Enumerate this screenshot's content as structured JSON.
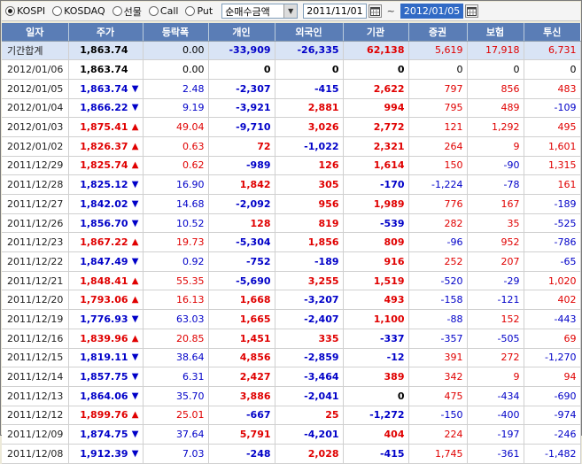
{
  "toolbar": {
    "markets": [
      {
        "label": "KOSPI",
        "selected": true
      },
      {
        "label": "KOSDAQ",
        "selected": false
      },
      {
        "label": "선물",
        "selected": false
      },
      {
        "label": "Call",
        "selected": false
      },
      {
        "label": "Put",
        "selected": false
      }
    ],
    "mode_select": "순매수금액",
    "start_date": "2011/11/01",
    "tilde": "~",
    "end_date": "2012/01/05"
  },
  "columns": [
    "일자",
    "주가",
    "등락폭",
    "개인",
    "외국인",
    "기관",
    "증권",
    "보험",
    "투신"
  ],
  "colors": {
    "up": "#e00000",
    "down": "#0000c8",
    "header_bg": "#5a7db6"
  },
  "rows": [
    {
      "date": "기간합계",
      "price": "1,863.74",
      "dir": "",
      "change": "0.00",
      "indiv": "-33,909",
      "foreign": "-26,335",
      "inst": "62,138",
      "sec": "5,619",
      "ins": "17,918",
      "trust": "6,731",
      "sum": true
    },
    {
      "date": "2012/01/06",
      "price": "1,863.74",
      "dir": "",
      "change": "0.00",
      "indiv": "0",
      "foreign": "0",
      "inst": "0",
      "sec": "0",
      "ins": "0",
      "trust": "0"
    },
    {
      "date": "2012/01/05",
      "price": "1,863.74",
      "dir": "down",
      "change": "2.48",
      "indiv": "-2,307",
      "foreign": "-415",
      "inst": "2,622",
      "sec": "797",
      "ins": "856",
      "trust": "483"
    },
    {
      "date": "2012/01/04",
      "price": "1,866.22",
      "dir": "down",
      "change": "9.19",
      "indiv": "-3,921",
      "foreign": "2,881",
      "inst": "994",
      "sec": "795",
      "ins": "489",
      "trust": "-109"
    },
    {
      "date": "2012/01/03",
      "price": "1,875.41",
      "dir": "up",
      "change": "49.04",
      "indiv": "-9,710",
      "foreign": "3,026",
      "inst": "2,772",
      "sec": "121",
      "ins": "1,292",
      "trust": "495"
    },
    {
      "date": "2012/01/02",
      "price": "1,826.37",
      "dir": "up",
      "change": "0.63",
      "indiv": "72",
      "foreign": "-1,022",
      "inst": "2,321",
      "sec": "264",
      "ins": "9",
      "trust": "1,601"
    },
    {
      "date": "2011/12/29",
      "price": "1,825.74",
      "dir": "up",
      "change": "0.62",
      "indiv": "-989",
      "foreign": "126",
      "inst": "1,614",
      "sec": "150",
      "ins": "-90",
      "trust": "1,315"
    },
    {
      "date": "2011/12/28",
      "price": "1,825.12",
      "dir": "down",
      "change": "16.90",
      "indiv": "1,842",
      "foreign": "305",
      "inst": "-170",
      "sec": "-1,224",
      "ins": "-78",
      "trust": "161"
    },
    {
      "date": "2011/12/27",
      "price": "1,842.02",
      "dir": "down",
      "change": "14.68",
      "indiv": "-2,092",
      "foreign": "956",
      "inst": "1,989",
      "sec": "776",
      "ins": "167",
      "trust": "-189"
    },
    {
      "date": "2011/12/26",
      "price": "1,856.70",
      "dir": "down",
      "change": "10.52",
      "indiv": "128",
      "foreign": "819",
      "inst": "-539",
      "sec": "282",
      "ins": "35",
      "trust": "-525"
    },
    {
      "date": "2011/12/23",
      "price": "1,867.22",
      "dir": "up",
      "change": "19.73",
      "indiv": "-5,304",
      "foreign": "1,856",
      "inst": "809",
      "sec": "-96",
      "ins": "952",
      "trust": "-786"
    },
    {
      "date": "2011/12/22",
      "price": "1,847.49",
      "dir": "down",
      "change": "0.92",
      "indiv": "-752",
      "foreign": "-189",
      "inst": "916",
      "sec": "252",
      "ins": "207",
      "trust": "-65"
    },
    {
      "date": "2011/12/21",
      "price": "1,848.41",
      "dir": "up",
      "change": "55.35",
      "indiv": "-5,690",
      "foreign": "3,255",
      "inst": "1,519",
      "sec": "-520",
      "ins": "-29",
      "trust": "1,020"
    },
    {
      "date": "2011/12/20",
      "price": "1,793.06",
      "dir": "up",
      "change": "16.13",
      "indiv": "1,668",
      "foreign": "-3,207",
      "inst": "493",
      "sec": "-158",
      "ins": "-121",
      "trust": "402"
    },
    {
      "date": "2011/12/19",
      "price": "1,776.93",
      "dir": "down",
      "change": "63.03",
      "indiv": "1,665",
      "foreign": "-2,407",
      "inst": "1,100",
      "sec": "-88",
      "ins": "152",
      "trust": "-443"
    },
    {
      "date": "2011/12/16",
      "price": "1,839.96",
      "dir": "up",
      "change": "20.85",
      "indiv": "1,451",
      "foreign": "335",
      "inst": "-337",
      "sec": "-357",
      "ins": "-505",
      "trust": "69"
    },
    {
      "date": "2011/12/15",
      "price": "1,819.11",
      "dir": "down",
      "change": "38.64",
      "indiv": "4,856",
      "foreign": "-2,859",
      "inst": "-12",
      "sec": "391",
      "ins": "272",
      "trust": "-1,270"
    },
    {
      "date": "2011/12/14",
      "price": "1,857.75",
      "dir": "down",
      "change": "6.31",
      "indiv": "2,427",
      "foreign": "-3,464",
      "inst": "389",
      "sec": "342",
      "ins": "9",
      "trust": "94"
    },
    {
      "date": "2011/12/13",
      "price": "1,864.06",
      "dir": "down",
      "change": "35.70",
      "indiv": "3,886",
      "foreign": "-2,041",
      "inst": "0",
      "sec": "475",
      "ins": "-434",
      "trust": "-690"
    },
    {
      "date": "2011/12/12",
      "price": "1,899.76",
      "dir": "up",
      "change": "25.01",
      "indiv": "-667",
      "foreign": "25",
      "inst": "-1,272",
      "sec": "-150",
      "ins": "-400",
      "trust": "-974"
    },
    {
      "date": "2011/12/09",
      "price": "1,874.75",
      "dir": "down",
      "change": "37.64",
      "indiv": "5,791",
      "foreign": "-4,201",
      "inst": "404",
      "sec": "224",
      "ins": "-197",
      "trust": "-246"
    },
    {
      "date": "2011/12/08",
      "price": "1,912.39",
      "dir": "down",
      "change": "7.03",
      "indiv": "-248",
      "foreign": "2,028",
      "inst": "-415",
      "sec": "1,745",
      "ins": "-361",
      "trust": "-1,482"
    }
  ]
}
